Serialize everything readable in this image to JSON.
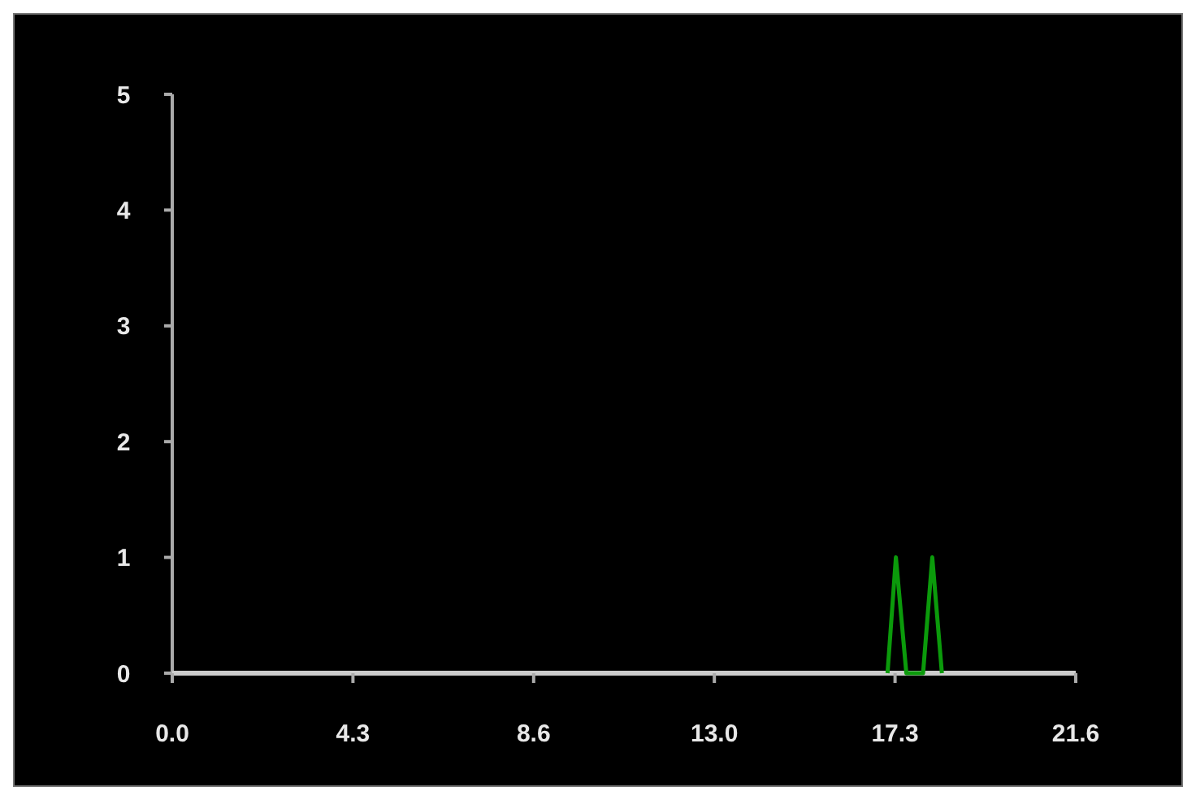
{
  "chart_data": {
    "type": "line",
    "x": [
      17.1,
      17.3,
      17.55,
      17.95,
      18.17,
      18.4
    ],
    "series": [
      {
        "color": "#0b9a0b",
        "values": [
          0,
          1,
          0,
          0,
          1,
          0
        ]
      }
    ],
    "xlim": [
      0,
      21.6
    ],
    "xticks": [
      {
        "value": 0,
        "label": "0.0"
      },
      {
        "value": 4.32,
        "label": "4.3"
      },
      {
        "value": 8.64,
        "label": "8.6"
      },
      {
        "value": 12.96,
        "label": "13.0"
      },
      {
        "value": 17.28,
        "label": "17.3"
      },
      {
        "value": 21.6,
        "label": "21.6"
      }
    ],
    "ylim": [
      0,
      5
    ],
    "yticks": [
      0,
      1,
      2,
      3,
      4,
      5
    ],
    "grid": false,
    "marker": "none",
    "line_style": "solid"
  }
}
